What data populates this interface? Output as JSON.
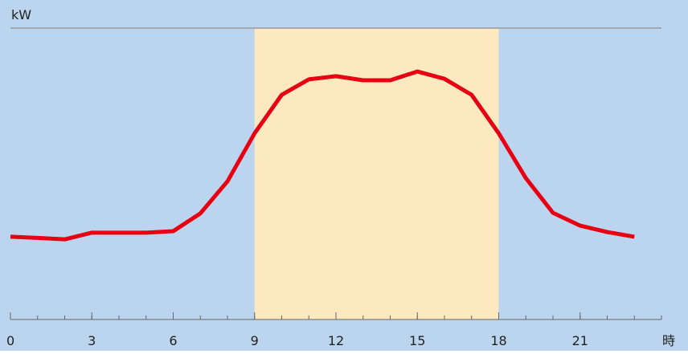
{
  "chart_data": {
    "type": "line",
    "y_label": "kW",
    "x_label": "時",
    "x": [
      0,
      1,
      2,
      3,
      4,
      5,
      6,
      7,
      8,
      9,
      10,
      11,
      12,
      13,
      14,
      15,
      16,
      17,
      18,
      19,
      20,
      21,
      22,
      23
    ],
    "series": [
      {
        "color": "#e60012",
        "values": [
          28.4,
          28.0,
          27.5,
          29.8,
          29.8,
          29.8,
          30.3,
          36.4,
          47.4,
          63.9,
          77.1,
          82.4,
          83.5,
          82.1,
          82.1,
          85.1,
          82.6,
          77.1,
          63.9,
          48.5,
          36.6,
          32.2,
          30.0,
          28.4
        ]
      }
    ],
    "xlim": [
      0,
      24
    ],
    "ylim": [
      0,
      100
    ],
    "xticks": [
      0,
      3,
      6,
      9,
      12,
      15,
      18,
      21
    ],
    "xminor": [
      0,
      1,
      2,
      3,
      4,
      5,
      6,
      7,
      8,
      9,
      10,
      11,
      12,
      13,
      14,
      15,
      16,
      17,
      18,
      19,
      20,
      21,
      22,
      23,
      24
    ],
    "highlight": [
      9,
      18
    ],
    "highlight_color": "#fde9c0",
    "background": "#bcd5ee"
  }
}
